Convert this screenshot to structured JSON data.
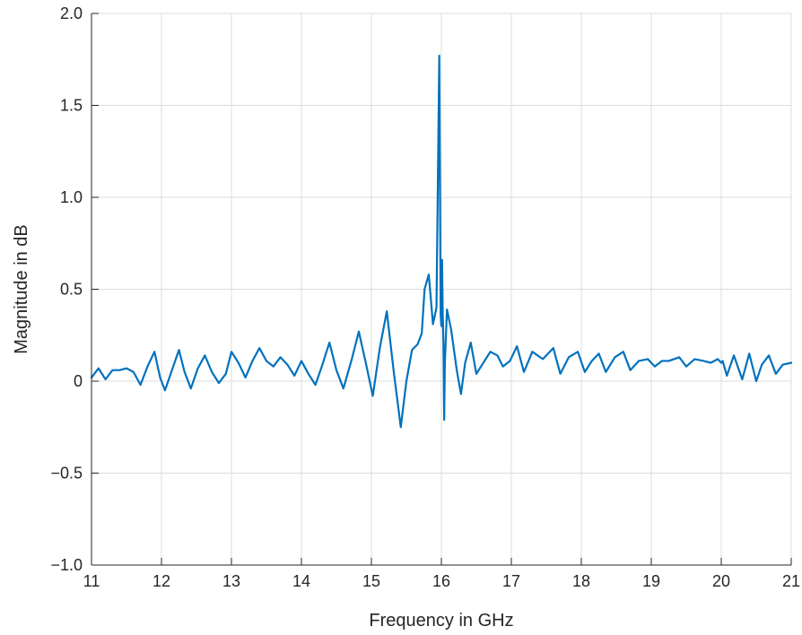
{
  "chart_data": {
    "type": "line",
    "title": "",
    "xlabel": "Frequency in GHz",
    "ylabel": "Magnitude in dB",
    "xlim": [
      11,
      21
    ],
    "ylim": [
      -1.0,
      2.0
    ],
    "xticks": [
      11,
      12,
      13,
      14,
      15,
      16,
      17,
      18,
      19,
      20,
      21
    ],
    "xtick_labels": [
      "11",
      "12",
      "13",
      "14",
      "15",
      "16",
      "17",
      "18",
      "19",
      "20",
      "21"
    ],
    "yticks": [
      -1.0,
      -0.5,
      0,
      0.5,
      1.0,
      1.5,
      2.0
    ],
    "ytick_labels": [
      "−1.0",
      "−0.5",
      "0",
      "0.5",
      "1.0",
      "1.5",
      "2.0"
    ],
    "grid": true,
    "legend": "none",
    "line_color": "#0072BD",
    "series": [
      {
        "x": [
          11.0,
          11.1,
          11.2,
          11.3,
          11.4,
          11.5,
          11.6,
          11.7,
          11.8,
          11.9,
          11.98,
          12.05,
          12.15,
          12.25,
          12.33,
          12.42,
          12.52,
          12.62,
          12.72,
          12.82,
          12.92,
          13.0,
          13.1,
          13.2,
          13.3,
          13.4,
          13.5,
          13.6,
          13.7,
          13.8,
          13.9,
          14.0,
          14.1,
          14.2,
          14.3,
          14.4,
          14.5,
          14.6,
          14.72,
          14.82,
          14.92,
          15.02,
          15.12,
          15.22,
          15.32,
          15.42,
          15.5,
          15.58,
          15.66,
          15.72,
          15.76,
          15.82,
          15.88,
          15.93,
          15.97,
          15.99,
          16.0,
          16.01,
          16.02,
          16.03,
          16.04,
          16.05,
          16.08,
          16.14,
          16.22,
          16.28,
          16.34,
          16.42,
          16.5,
          16.6,
          16.7,
          16.8,
          16.88,
          16.98,
          17.08,
          17.18,
          17.3,
          17.45,
          17.6,
          17.7,
          17.82,
          17.95,
          18.05,
          18.15,
          18.25,
          18.35,
          18.48,
          18.6,
          18.7,
          18.82,
          18.95,
          19.05,
          19.15,
          19.25,
          19.4,
          19.5,
          19.62,
          19.75,
          19.85,
          19.95,
          20.0,
          20.02,
          20.08,
          20.18,
          20.3,
          20.4,
          20.5,
          20.58,
          20.68,
          20.78,
          20.88,
          21.0
        ],
        "y": [
          0.02,
          0.07,
          0.01,
          0.06,
          0.06,
          0.07,
          0.05,
          -0.02,
          0.08,
          0.16,
          0.02,
          -0.05,
          0.06,
          0.17,
          0.05,
          -0.04,
          0.07,
          0.14,
          0.05,
          -0.01,
          0.04,
          0.16,
          0.1,
          0.02,
          0.11,
          0.18,
          0.11,
          0.08,
          0.13,
          0.09,
          0.03,
          0.11,
          0.04,
          -0.02,
          0.09,
          0.21,
          0.06,
          -0.04,
          0.12,
          0.27,
          0.1,
          -0.08,
          0.18,
          0.38,
          0.05,
          -0.25,
          0.0,
          0.17,
          0.2,
          0.26,
          0.5,
          0.58,
          0.31,
          0.4,
          1.77,
          0.36,
          0.3,
          0.66,
          0.36,
          0.2,
          -0.21,
          0.1,
          0.39,
          0.28,
          0.06,
          -0.07,
          0.1,
          0.21,
          0.04,
          0.1,
          0.16,
          0.14,
          0.08,
          0.11,
          0.19,
          0.05,
          0.16,
          0.12,
          0.18,
          0.04,
          0.13,
          0.16,
          0.05,
          0.11,
          0.15,
          0.05,
          0.13,
          0.16,
          0.06,
          0.11,
          0.12,
          0.08,
          0.11,
          0.11,
          0.13,
          0.08,
          0.12,
          0.11,
          0.1,
          0.12,
          0.1,
          0.11,
          0.03,
          0.14,
          0.01,
          0.15,
          0.0,
          0.09,
          0.14,
          0.04,
          0.09,
          0.1
        ]
      }
    ]
  }
}
